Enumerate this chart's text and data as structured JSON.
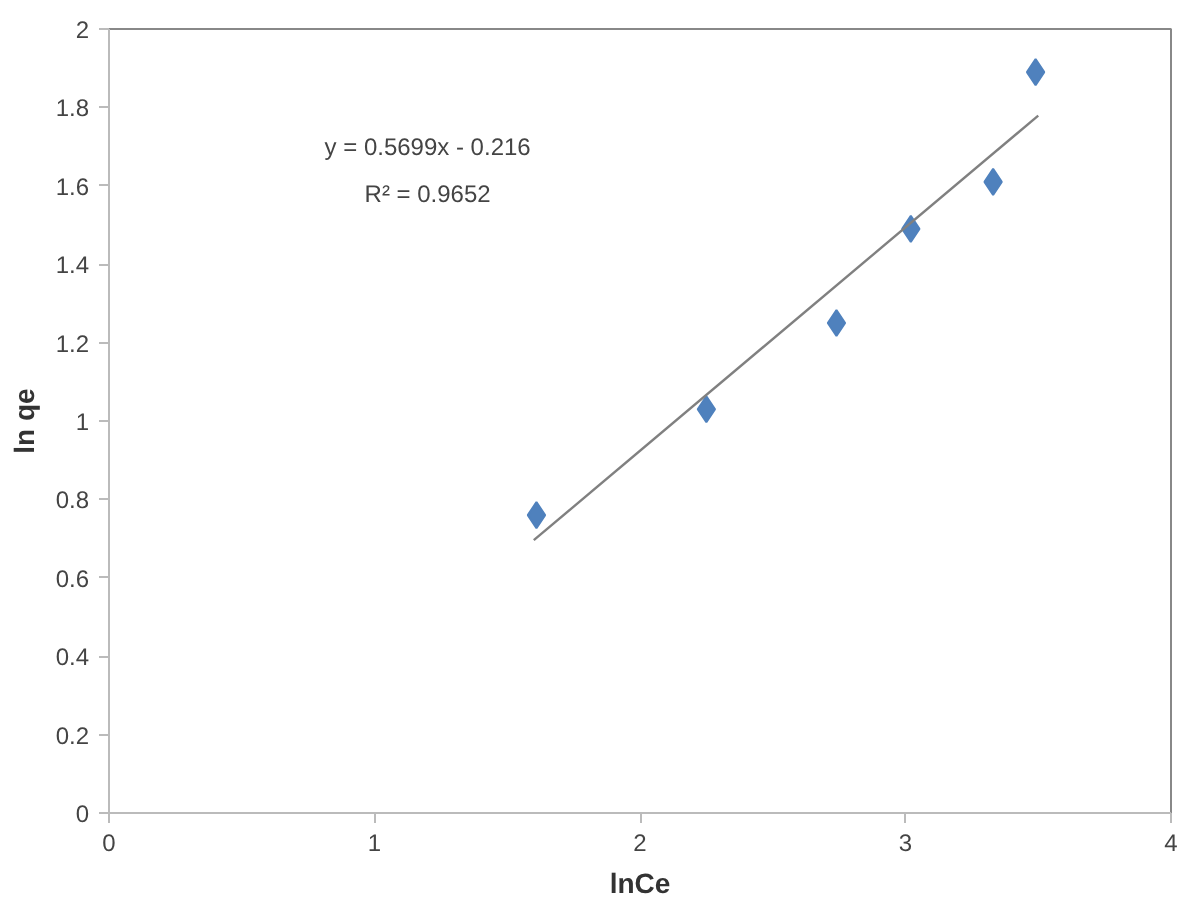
{
  "chart_data": {
    "type": "scatter",
    "xlabel": "lnCe",
    "ylabel": "ln qe",
    "x": [
      1.61,
      2.25,
      2.74,
      3.02,
      3.33,
      3.49
    ],
    "series": [
      {
        "color": "#4f81bd",
        "marker": "diamond",
        "values": [
          0.76,
          1.03,
          1.25,
          1.49,
          1.61,
          1.89
        ]
      },
      {
        "type": "line",
        "color": "#808080",
        "x": [
          1.6,
          3.5
        ],
        "values": [
          0.696,
          1.779
        ]
      }
    ],
    "annotations": [
      "y = 0.5699x - 0.216",
      "R² = 0.9652"
    ],
    "xlim": [
      0,
      4
    ],
    "xticks": [
      0,
      1,
      2,
      3,
      4
    ],
    "ylim": [
      0,
      2
    ],
    "yticks": [
      0,
      0.2,
      0.4,
      0.6,
      0.8,
      1,
      1.2,
      1.4,
      1.6,
      1.8,
      2
    ],
    "grid": false
  }
}
